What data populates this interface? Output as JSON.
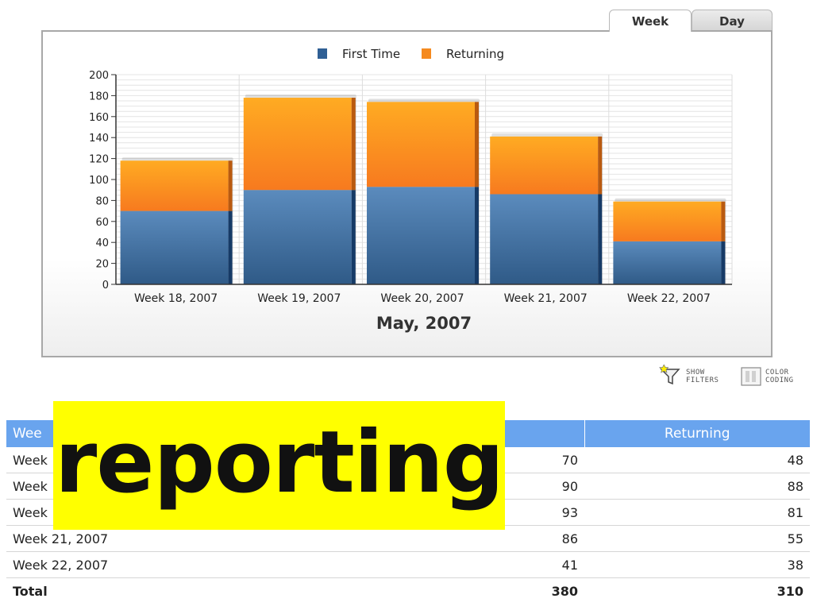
{
  "tabs": [
    {
      "label": "Week",
      "active": true
    },
    {
      "label": "Day",
      "active": false
    }
  ],
  "chart_data": {
    "type": "bar",
    "stacked": true,
    "title": "",
    "xlabel": "May, 2007",
    "ylabel": "",
    "categories": [
      "Week 18, 2007",
      "Week 19, 2007",
      "Week 20, 2007",
      "Week 21, 2007",
      "Week 22, 2007"
    ],
    "series": [
      {
        "name": "First Time",
        "values": [
          70,
          90,
          93,
          86,
          41
        ],
        "color": "#3d6f9e"
      },
      {
        "name": "Returning",
        "values": [
          48,
          88,
          81,
          55,
          38
        ],
        "color": "#f58a1f"
      }
    ],
    "ylim": [
      0,
      200
    ],
    "yticks": [
      0,
      20,
      40,
      60,
      80,
      100,
      120,
      140,
      160,
      180,
      200
    ],
    "grid": true,
    "legend_position": "top-center"
  },
  "toolbar": {
    "show_filters": [
      "SHOW",
      "FILTERS"
    ],
    "color_coding": [
      "COLOR",
      "CODING"
    ]
  },
  "table": {
    "headers": [
      "Wee",
      "",
      "Returning"
    ],
    "rows": [
      [
        "Week",
        "70",
        "48"
      ],
      [
        "Week",
        "90",
        "88"
      ],
      [
        "Week",
        "93",
        "81"
      ],
      [
        "Week 21, 2007",
        "86",
        "55"
      ],
      [
        "Week 22, 2007",
        "41",
        "38"
      ]
    ],
    "total": [
      "Total",
      "380",
      "310"
    ]
  },
  "overlay": {
    "text": "reporting",
    "color": "#ffff00"
  }
}
